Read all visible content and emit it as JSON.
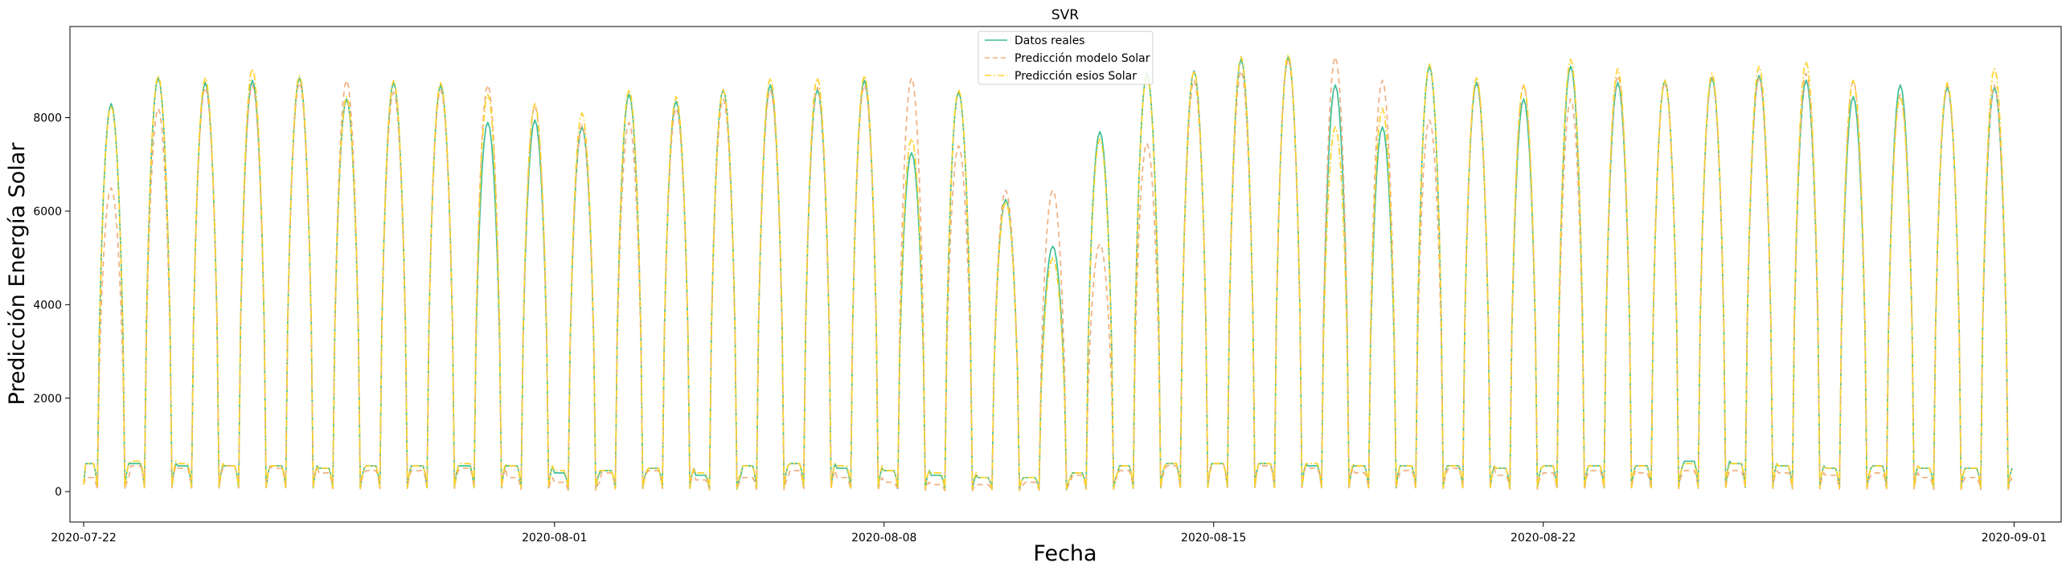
{
  "chart_data": {
    "type": "line",
    "title": "SVR",
    "xlabel": "Fecha",
    "ylabel": "Predicción Energía Solar",
    "x_range": [
      "2020-07-21T17:00",
      "2020-09-02T00:00"
    ],
    "ylim": [
      -650,
      9950
    ],
    "x_ticks": [
      "2020-07-22",
      "2020-08-01",
      "2020-08-08",
      "2020-08-15",
      "2020-08-22",
      "2020-09-01"
    ],
    "y_ticks": [
      0,
      2000,
      4000,
      6000,
      8000
    ],
    "grid": false,
    "legend_position": "upper-center",
    "series": [
      {
        "name": "Datos reales",
        "color": "#3dbf94",
        "style": "solid",
        "start": "2020-07-22T00:00",
        "end": "2020-08-31T23:00",
        "peaks": [
          8300,
          8850,
          8750,
          8800,
          8850,
          8400,
          8750,
          8700,
          7900,
          7950,
          7800,
          8500,
          8350,
          8600,
          8700,
          8600,
          8800,
          7250,
          8550,
          6250,
          5250,
          7700,
          8950,
          9000,
          9250,
          9300,
          8700,
          7800,
          9100,
          8750,
          8400,
          9100,
          8750,
          8800,
          8850,
          8900,
          8800,
          8450,
          8700,
          8650,
          8650
        ],
        "nights": [
          600,
          600,
          550,
          550,
          550,
          500,
          550,
          550,
          550,
          550,
          400,
          450,
          500,
          350,
          550,
          600,
          500,
          450,
          350,
          300,
          300,
          400,
          550,
          600,
          600,
          600,
          550,
          550,
          550,
          550,
          500,
          550,
          550,
          550,
          650,
          600,
          550,
          500,
          550,
          500,
          500
        ]
      },
      {
        "name": "Predicción modelo Solar",
        "color": "#f0b080",
        "style": "dashed",
        "start": "2020-07-22T00:00",
        "end": "2020-08-31T23:00",
        "peaks": [
          6500,
          8200,
          8650,
          8700,
          8750,
          8800,
          8550,
          8600,
          8700,
          8250,
          7850,
          7900,
          8200,
          8400,
          8600,
          8650,
          8700,
          8850,
          7400,
          6450,
          6450,
          5300,
          7450,
          8800,
          9000,
          9250,
          9300,
          8800,
          7950,
          8850,
          8700,
          8400,
          8900,
          8750,
          8900,
          8850,
          8950,
          8800,
          8500,
          8700,
          8700
        ],
        "nights": [
          300,
          550,
          500,
          550,
          500,
          400,
          450,
          450,
          500,
          300,
          200,
          400,
          450,
          250,
          300,
          450,
          300,
          200,
          150,
          150,
          200,
          350,
          450,
          550,
          600,
          550,
          500,
          400,
          450,
          500,
          350,
          400,
          450,
          400,
          450,
          450,
          400,
          350,
          400,
          300,
          300
        ]
      },
      {
        "name": "Predicción esios Solar",
        "color": "#ffd22a",
        "style": "dashdot",
        "start": "2020-07-22T00:00",
        "end": "2020-08-31T23:00",
        "peaks": [
          8250,
          8900,
          8850,
          9050,
          8900,
          8450,
          8800,
          8750,
          8500,
          8300,
          8100,
          8600,
          8450,
          8600,
          8850,
          8850,
          8900,
          7550,
          8600,
          6200,
          5000,
          7550,
          8900,
          9000,
          9300,
          9350,
          7800,
          8200,
          9150,
          8850,
          8700,
          9250,
          9050,
          8800,
          8950,
          9100,
          9200,
          8800,
          8450,
          8750,
          9050
        ],
        "nights": [
          600,
          650,
          600,
          550,
          550,
          500,
          550,
          550,
          600,
          550,
          450,
          450,
          500,
          400,
          550,
          600,
          550,
          450,
          400,
          300,
          300,
          400,
          550,
          600,
          600,
          600,
          600,
          550,
          550,
          550,
          500,
          550,
          550,
          550,
          600,
          600,
          550,
          500,
          550,
          500,
          500
        ]
      }
    ]
  }
}
